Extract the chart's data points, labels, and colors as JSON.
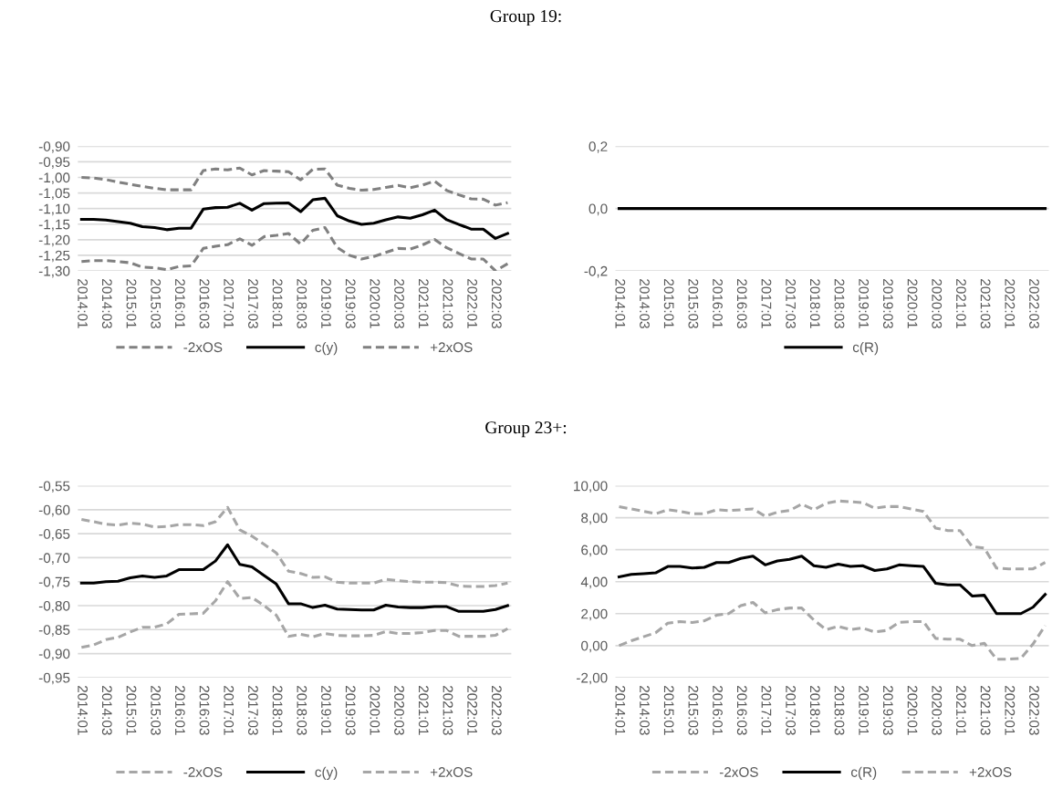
{
  "chart_data": [
    {
      "type": "line",
      "title": "Group 19:",
      "categories": [
        "2014:01",
        null,
        "2014:03",
        null,
        "2015:01",
        null,
        "2015:03",
        null,
        "2016:01",
        null,
        "2016:03",
        null,
        "2017:01",
        null,
        "2017:03",
        null,
        "2018:01",
        null,
        "2018:03",
        null,
        "2019:01",
        null,
        "2019:03",
        null,
        "2020:01",
        null,
        "2020:03",
        null,
        "2021:01",
        null,
        "2021:03",
        null,
        "2022:01",
        null,
        "2022:03",
        null
      ],
      "series": [
        {
          "name": "-2xOS",
          "color": "#808080",
          "line_style": "dashed",
          "values": [
            -1.27,
            -1.267,
            -1.267,
            -1.27,
            -1.274,
            -1.288,
            -1.29,
            -1.296,
            -1.286,
            -1.284,
            -1.228,
            -1.221,
            -1.216,
            -1.197,
            -1.218,
            -1.19,
            -1.186,
            -1.18,
            -1.214,
            -1.17,
            -1.161,
            -1.225,
            -1.25,
            -1.262,
            -1.254,
            -1.241,
            -1.228,
            -1.23,
            -1.217,
            -1.199,
            -1.226,
            -1.244,
            -1.262,
            -1.262,
            -1.3,
            -1.277
          ]
        },
        {
          "name": "c(y)",
          "color": "#000000",
          "line_style": "solid",
          "values": [
            -1.135,
            -1.135,
            -1.137,
            -1.142,
            -1.147,
            -1.158,
            -1.161,
            -1.168,
            -1.163,
            -1.163,
            -1.102,
            -1.097,
            -1.096,
            -1.083,
            -1.105,
            -1.084,
            -1.083,
            -1.082,
            -1.11,
            -1.072,
            -1.067,
            -1.123,
            -1.14,
            -1.151,
            -1.147,
            -1.136,
            -1.127,
            -1.131,
            -1.12,
            -1.105,
            -1.136,
            -1.151,
            -1.166,
            -1.166,
            -1.196,
            -1.18
          ]
        },
        {
          "name": "+2xOS",
          "color": "#808080",
          "line_style": "dashed",
          "values": [
            -1.0,
            -1.002,
            -1.007,
            -1.015,
            -1.022,
            -1.029,
            -1.035,
            -1.04,
            -1.04,
            -1.04,
            -0.978,
            -0.973,
            -0.976,
            -0.97,
            -0.992,
            -0.978,
            -0.98,
            -0.982,
            -1.008,
            -0.974,
            -0.973,
            -1.025,
            -1.035,
            -1.041,
            -1.039,
            -1.032,
            -1.026,
            -1.033,
            -1.025,
            -1.012,
            -1.042,
            -1.056,
            -1.069,
            -1.07,
            -1.089,
            -1.081
          ]
        }
      ],
      "ylim": [
        -1.3,
        -0.9
      ],
      "yticks": [
        {
          "value": -1.3,
          "label": "-1,30"
        },
        {
          "value": -1.25,
          "label": "-1,25"
        },
        {
          "value": -1.2,
          "label": "-1,20"
        },
        {
          "value": -1.15,
          "label": "-1,15"
        },
        {
          "value": -1.1,
          "label": "-1,10"
        },
        {
          "value": -1.05,
          "label": "-1,05"
        },
        {
          "value": -1.0,
          "label": "-1,00"
        },
        {
          "value": -0.95,
          "label": "-0,95"
        },
        {
          "value": -0.9,
          "label": "-0,90"
        }
      ],
      "grid": "y",
      "legend": "bottom"
    },
    {
      "type": "line",
      "categories": [
        "2014:01",
        null,
        "2014:03",
        null,
        "2015:01",
        null,
        "2015:03",
        null,
        "2016:01",
        null,
        "2016:03",
        null,
        "2017:01",
        null,
        "2017:03",
        null,
        "2018:01",
        null,
        "2018:03",
        null,
        "2019:01",
        null,
        "2019:03",
        null,
        "2020:01",
        null,
        "2020:03",
        null,
        "2021:01",
        null,
        "2021:03",
        null,
        "2022:01",
        null,
        "2022:03",
        null
      ],
      "series": [
        {
          "name": "c(R)",
          "color": "#000000",
          "line_style": "solid",
          "values": [
            0,
            0,
            0,
            0,
            0,
            0,
            0,
            0,
            0,
            0,
            0,
            0,
            0,
            0,
            0,
            0,
            0,
            0,
            0,
            0,
            0,
            0,
            0,
            0,
            0,
            0,
            0,
            0,
            0,
            0,
            0,
            0,
            0,
            0,
            0,
            0
          ]
        }
      ],
      "ylim": [
        -0.2,
        0.2
      ],
      "yticks": [
        {
          "value": -0.2,
          "label": "-0,2"
        },
        {
          "value": 0.0,
          "label": "0,0"
        },
        {
          "value": 0.2,
          "label": "0,2"
        }
      ],
      "grid": "y",
      "legend": "bottom"
    },
    {
      "type": "line",
      "title": "Group 23+:",
      "categories": [
        "2014:01",
        null,
        "2014:03",
        null,
        "2015:01",
        null,
        "2015:03",
        null,
        "2016:01",
        null,
        "2016:03",
        null,
        "2017:01",
        null,
        "2017:03",
        null,
        "2018:01",
        null,
        "2018:03",
        null,
        "2019:01",
        null,
        "2019:03",
        null,
        "2020:01",
        null,
        "2020:03",
        null,
        "2021:01",
        null,
        "2021:03",
        null,
        "2022:01",
        null,
        "2022:03",
        null
      ],
      "series": [
        {
          "name": "-2xOS",
          "color": "#a6a6a6",
          "line_style": "dashed",
          "values": [
            -0.887,
            -0.882,
            -0.871,
            -0.866,
            -0.855,
            -0.845,
            -0.845,
            -0.838,
            -0.818,
            -0.817,
            -0.816,
            -0.79,
            -0.75,
            -0.785,
            -0.783,
            -0.8,
            -0.82,
            -0.864,
            -0.86,
            -0.865,
            -0.858,
            -0.862,
            -0.863,
            -0.863,
            -0.862,
            -0.854,
            -0.858,
            -0.858,
            -0.856,
            -0.852,
            -0.852,
            -0.864,
            -0.864,
            -0.864,
            -0.862,
            -0.848
          ]
        },
        {
          "name": "c(y)",
          "color": "#000000",
          "line_style": "solid",
          "values": [
            -0.753,
            -0.753,
            -0.75,
            -0.749,
            -0.742,
            -0.738,
            -0.741,
            -0.738,
            -0.725,
            -0.725,
            -0.725,
            -0.707,
            -0.673,
            -0.714,
            -0.719,
            -0.737,
            -0.755,
            -0.796,
            -0.796,
            -0.804,
            -0.799,
            -0.807,
            -0.808,
            -0.809,
            -0.809,
            -0.799,
            -0.803,
            -0.804,
            -0.804,
            -0.802,
            -0.802,
            -0.812,
            -0.812,
            -0.812,
            -0.808,
            -0.8
          ]
        },
        {
          "name": "+2xOS",
          "color": "#a6a6a6",
          "line_style": "dashed",
          "values": [
            -0.62,
            -0.625,
            -0.63,
            -0.632,
            -0.628,
            -0.63,
            -0.636,
            -0.635,
            -0.631,
            -0.631,
            -0.633,
            -0.625,
            -0.595,
            -0.642,
            -0.655,
            -0.672,
            -0.69,
            -0.728,
            -0.733,
            -0.741,
            -0.74,
            -0.751,
            -0.753,
            -0.753,
            -0.753,
            -0.745,
            -0.748,
            -0.75,
            -0.751,
            -0.751,
            -0.752,
            -0.759,
            -0.76,
            -0.76,
            -0.758,
            -0.753
          ]
        }
      ],
      "ylim": [
        -0.95,
        -0.55
      ],
      "yticks": [
        {
          "value": -0.95,
          "label": "-0,95"
        },
        {
          "value": -0.9,
          "label": "-0,90"
        },
        {
          "value": -0.85,
          "label": "-0,85"
        },
        {
          "value": -0.8,
          "label": "-0,80"
        },
        {
          "value": -0.75,
          "label": "-0,75"
        },
        {
          "value": -0.7,
          "label": "-0,70"
        },
        {
          "value": -0.65,
          "label": "-0,65"
        },
        {
          "value": -0.6,
          "label": "-0,60"
        },
        {
          "value": -0.55,
          "label": "-0,55"
        }
      ],
      "grid": "y",
      "legend": "bottom"
    },
    {
      "type": "line",
      "categories": [
        "2014:01",
        null,
        "2014:03",
        null,
        "2015:01",
        null,
        "2015:03",
        null,
        "2016:01",
        null,
        "2016:03",
        null,
        "2017:01",
        null,
        "2017:03",
        null,
        "2018:01",
        null,
        "2018:03",
        null,
        "2019:01",
        null,
        "2019:03",
        null,
        "2020:01",
        null,
        "2020:03",
        null,
        "2021:01",
        null,
        "2021:03",
        null,
        "2022:01",
        null,
        "2022:03",
        null
      ],
      "series": [
        {
          "name": "-2xOS",
          "color": "#a6a6a6",
          "line_style": "dashed",
          "values": [
            0.0,
            0.3,
            0.55,
            0.8,
            1.4,
            1.5,
            1.45,
            1.55,
            1.9,
            2.0,
            2.5,
            2.7,
            2.05,
            2.25,
            2.35,
            2.35,
            1.6,
            1.0,
            1.2,
            1.0,
            1.1,
            0.85,
            0.95,
            1.45,
            1.5,
            1.5,
            0.45,
            0.4,
            0.4,
            0.0,
            0.15,
            -0.85,
            -0.85,
            -0.8,
            0.1,
            1.25
          ]
        },
        {
          "name": "c(R)",
          "color": "#000000",
          "line_style": "solid",
          "values": [
            4.3,
            4.45,
            4.5,
            4.55,
            4.95,
            4.95,
            4.85,
            4.9,
            5.2,
            5.2,
            5.45,
            5.6,
            5.05,
            5.3,
            5.4,
            5.6,
            5.0,
            4.9,
            5.1,
            4.95,
            5.0,
            4.7,
            4.8,
            5.05,
            5.0,
            4.95,
            3.9,
            3.8,
            3.8,
            3.1,
            3.15,
            2.0,
            2.0,
            2.0,
            2.4,
            3.2
          ]
        },
        {
          "name": "+2xOS",
          "color": "#a6a6a6",
          "line_style": "dashed",
          "values": [
            8.7,
            8.55,
            8.4,
            8.25,
            8.5,
            8.4,
            8.25,
            8.25,
            8.5,
            8.45,
            8.5,
            8.55,
            8.1,
            8.35,
            8.45,
            8.85,
            8.5,
            8.9,
            9.05,
            9.0,
            8.95,
            8.6,
            8.7,
            8.7,
            8.55,
            8.4,
            7.35,
            7.2,
            7.2,
            6.2,
            6.1,
            4.85,
            4.8,
            4.8,
            4.8,
            5.2
          ]
        }
      ],
      "ylim": [
        -2,
        10
      ],
      "yticks": [
        {
          "value": -2,
          "label": "-2,00"
        },
        {
          "value": 0,
          "label": "0,00"
        },
        {
          "value": 2,
          "label": "2,00"
        },
        {
          "value": 4,
          "label": "4,00"
        },
        {
          "value": 6,
          "label": "6,00"
        },
        {
          "value": 8,
          "label": "8,00"
        },
        {
          "value": 10,
          "label": "10,00"
        }
      ],
      "grid": "y",
      "legend": "bottom"
    }
  ]
}
